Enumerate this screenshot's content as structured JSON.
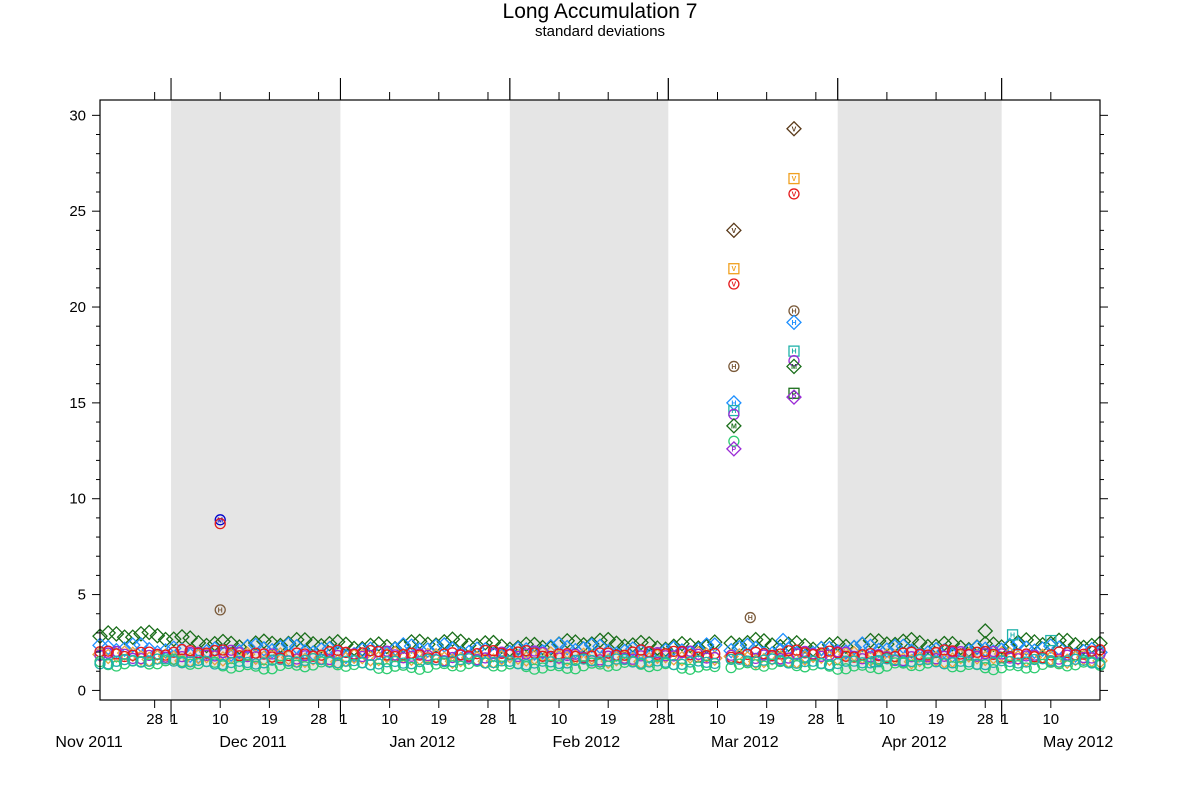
{
  "chart_data": {
    "type": "scatter",
    "title": "Long Accumulation 7",
    "subtitle": "standard deviations",
    "x_range": [
      "2011-11-18",
      "2012-05-19"
    ],
    "ylim": [
      -0.5,
      30.8
    ],
    "y_ticks": [
      0,
      5,
      10,
      15,
      20,
      25,
      30
    ],
    "month_labels": [
      {
        "label": "Nov 2011",
        "date": "2011-11-16"
      },
      {
        "label": "Dec 2011",
        "date": "2011-12-16"
      },
      {
        "label": "Jan 2012",
        "date": "2012-01-16"
      },
      {
        "label": "Feb 2012",
        "date": "2012-02-15"
      },
      {
        "label": "Mar 2012",
        "date": "2012-03-15"
      },
      {
        "label": "Apr 2012",
        "date": "2012-04-15"
      },
      {
        "label": "May 2012",
        "date": "2012-05-15"
      }
    ],
    "day_ticks": [
      {
        "label": "28",
        "date": "2011-11-28"
      },
      {
        "label": "1",
        "date": "2011-12-01"
      },
      {
        "label": "10",
        "date": "2011-12-10"
      },
      {
        "label": "19",
        "date": "2011-12-19"
      },
      {
        "label": "28",
        "date": "2011-12-28"
      },
      {
        "label": "1",
        "date": "2012-01-01"
      },
      {
        "label": "10",
        "date": "2012-01-10"
      },
      {
        "label": "19",
        "date": "2012-01-19"
      },
      {
        "label": "28",
        "date": "2012-01-28"
      },
      {
        "label": "1",
        "date": "2012-02-01"
      },
      {
        "label": "10",
        "date": "2012-02-10"
      },
      {
        "label": "19",
        "date": "2012-02-19"
      },
      {
        "label": "28",
        "date": "2012-02-28"
      },
      {
        "label": "1",
        "date": "2012-03-01"
      },
      {
        "label": "10",
        "date": "2012-03-10"
      },
      {
        "label": "19",
        "date": "2012-03-19"
      },
      {
        "label": "28",
        "date": "2012-03-28"
      },
      {
        "label": "1",
        "date": "2012-04-01"
      },
      {
        "label": "10",
        "date": "2012-04-10"
      },
      {
        "label": "19",
        "date": "2012-04-19"
      },
      {
        "label": "28",
        "date": "2012-04-28"
      },
      {
        "label": "1",
        "date": "2012-05-01"
      },
      {
        "label": "10",
        "date": "2012-05-10"
      }
    ],
    "shaded_months": [
      [
        "2011-12-01",
        "2012-01-01"
      ],
      [
        "2012-02-01",
        "2012-03-01"
      ],
      [
        "2012-04-01",
        "2012-05-01"
      ]
    ],
    "colors": {
      "shade": "#e5e5e5",
      "baseline": "#555555"
    },
    "background_series": [
      {
        "color": "#1a6e1a",
        "marker": "diamond",
        "level": 2.4,
        "start_level": 2.9,
        "amp": 0.25
      },
      {
        "color": "#1e90ff",
        "marker": "diamond",
        "level": 2.1,
        "start_level": 2.1,
        "amp": 0.3
      },
      {
        "color": "#e8a33d",
        "marker": "diamond",
        "level": 1.7,
        "start_level": 1.8,
        "amp": 0.2
      },
      {
        "color": "#9a2bd6",
        "marker": "circle",
        "level": 1.8,
        "start_level": 1.9,
        "amp": 0.25
      },
      {
        "color": "#e41a1c",
        "marker": "circle",
        "level": 1.9,
        "start_level": 2.0,
        "amp": 0.2
      },
      {
        "color": "#2ecc71",
        "marker": "circle",
        "level": 1.3,
        "start_level": 1.5,
        "amp": 0.2
      },
      {
        "color": "#20b2aa",
        "marker": "circle",
        "level": 1.5,
        "start_level": 1.5,
        "amp": 0.15
      }
    ],
    "outliers": [
      {
        "date": "2011-12-10",
        "y": 8.9,
        "shape": "circle",
        "letter": "M",
        "color": "#0000cc"
      },
      {
        "date": "2011-12-10",
        "y": 8.7,
        "shape": "circle",
        "letter": "",
        "color": "#e41a1c"
      },
      {
        "date": "2011-12-10",
        "y": 4.2,
        "shape": "circle",
        "letter": "H",
        "color": "#7a5a3a"
      },
      {
        "date": "2012-03-13",
        "y": 24.0,
        "shape": "diamond",
        "letter": "V",
        "color": "#5a3a1a"
      },
      {
        "date": "2012-03-13",
        "y": 22.0,
        "shape": "square",
        "letter": "V",
        "color": "#f0a020"
      },
      {
        "date": "2012-03-13",
        "y": 21.2,
        "shape": "circle",
        "letter": "V",
        "color": "#e41a1c"
      },
      {
        "date": "2012-03-13",
        "y": 16.9,
        "shape": "circle",
        "letter": "H",
        "color": "#7a5a3a"
      },
      {
        "date": "2012-03-13",
        "y": 15.0,
        "shape": "diamond",
        "letter": "H",
        "color": "#1e90ff"
      },
      {
        "date": "2012-03-13",
        "y": 14.6,
        "shape": "square",
        "letter": "H",
        "color": "#20b2aa"
      },
      {
        "date": "2012-03-13",
        "y": 14.4,
        "shape": "circle",
        "letter": "",
        "color": "#9a2bd6"
      },
      {
        "date": "2012-03-13",
        "y": 13.8,
        "shape": "diamond",
        "letter": "M",
        "color": "#1a6e1a"
      },
      {
        "date": "2012-03-13",
        "y": 13.0,
        "shape": "circle",
        "letter": "",
        "color": "#2ecc71"
      },
      {
        "date": "2012-03-13",
        "y": 12.6,
        "shape": "diamond",
        "letter": "P",
        "color": "#9a2bd6"
      },
      {
        "date": "2012-03-16",
        "y": 3.8,
        "shape": "circle",
        "letter": "H",
        "color": "#7a5a3a"
      },
      {
        "date": "2012-03-24",
        "y": 29.3,
        "shape": "diamond",
        "letter": "V",
        "color": "#5a3a1a"
      },
      {
        "date": "2012-03-24",
        "y": 26.7,
        "shape": "square",
        "letter": "V",
        "color": "#f0a020"
      },
      {
        "date": "2012-03-24",
        "y": 25.9,
        "shape": "circle",
        "letter": "V",
        "color": "#e41a1c"
      },
      {
        "date": "2012-03-24",
        "y": 19.8,
        "shape": "circle",
        "letter": "H",
        "color": "#7a5a3a"
      },
      {
        "date": "2012-03-24",
        "y": 19.2,
        "shape": "diamond",
        "letter": "H",
        "color": "#1e90ff"
      },
      {
        "date": "2012-03-24",
        "y": 17.7,
        "shape": "square",
        "letter": "H",
        "color": "#20b2aa"
      },
      {
        "date": "2012-03-24",
        "y": 17.2,
        "shape": "circle",
        "letter": "",
        "color": "#9a2bd6"
      },
      {
        "date": "2012-03-24",
        "y": 16.9,
        "shape": "diamond",
        "letter": "M",
        "color": "#1a6e1a"
      },
      {
        "date": "2012-03-24",
        "y": 15.5,
        "shape": "square",
        "letter": "P",
        "color": "#1a6e1a"
      },
      {
        "date": "2012-03-24",
        "y": 15.3,
        "shape": "diamond",
        "letter": "P",
        "color": "#9a2bd6"
      },
      {
        "date": "2012-03-22",
        "y": 2.6,
        "shape": "diamond",
        "letter": "",
        "color": "#1e90ff"
      },
      {
        "date": "2012-04-28",
        "y": 3.1,
        "shape": "diamond",
        "letter": "",
        "color": "#1a6e1a"
      },
      {
        "date": "2012-05-03",
        "y": 2.9,
        "shape": "square",
        "letter": "H",
        "color": "#20b2aa"
      },
      {
        "date": "2012-05-10",
        "y": 2.6,
        "shape": "square",
        "letter": "",
        "color": "#20b2aa"
      },
      {
        "date": "2012-04-08",
        "y": 1.5,
        "shape": "square",
        "letter": "",
        "color": "#20b2aa"
      }
    ]
  }
}
